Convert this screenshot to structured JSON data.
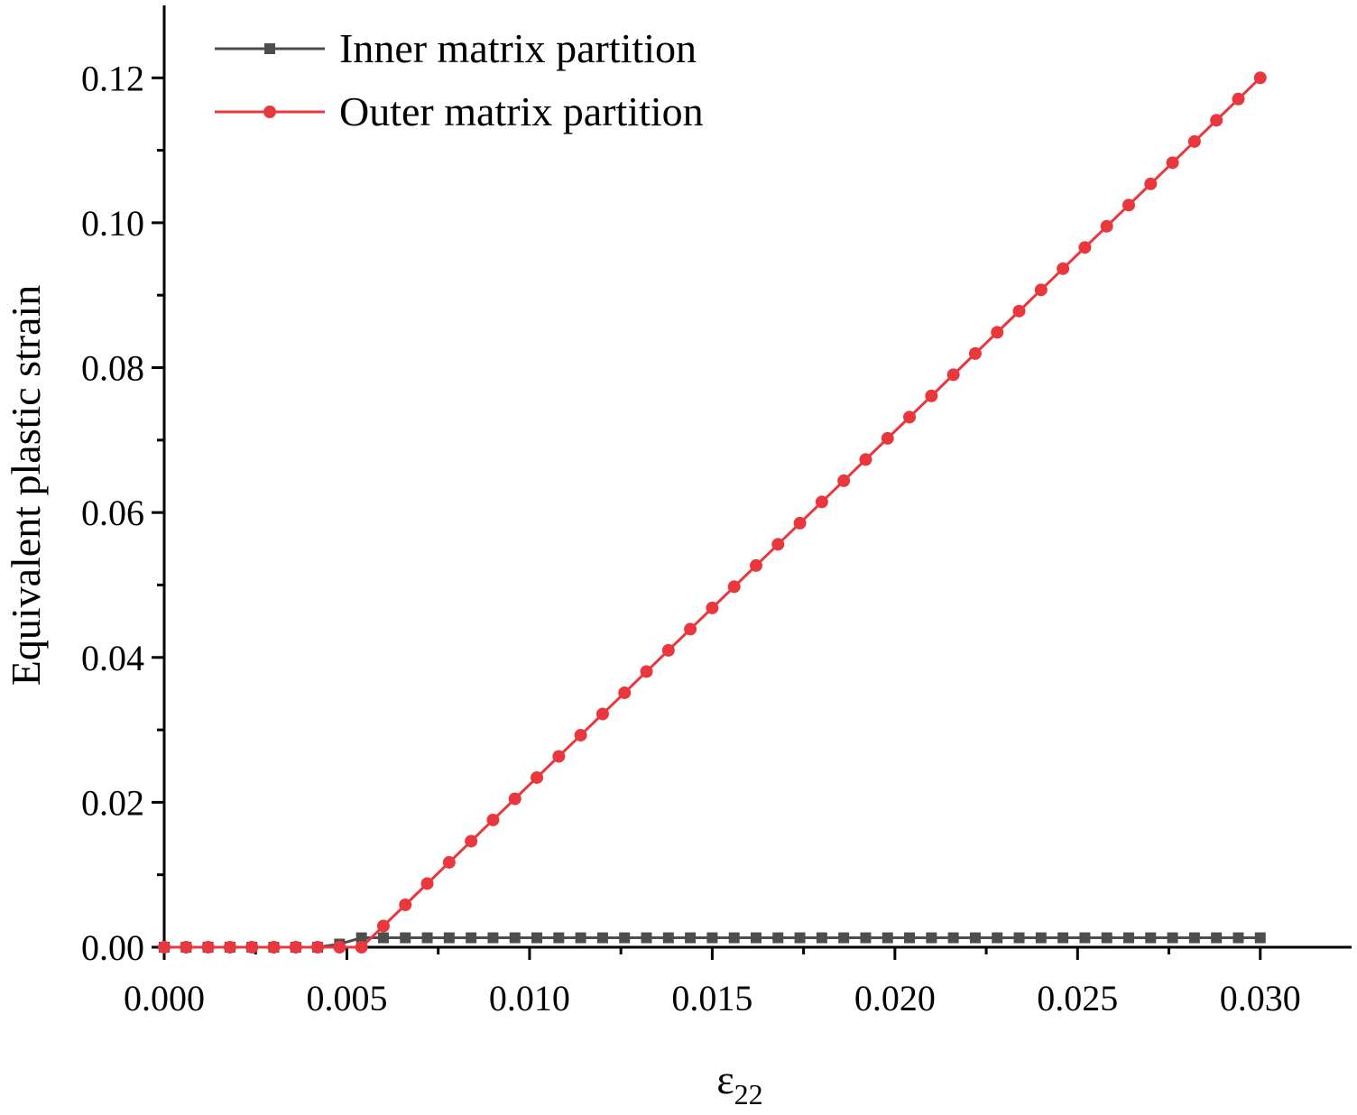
{
  "chart_data": {
    "type": "line",
    "title": "",
    "xlabel": "ε",
    "xlabel_subscript": "22",
    "ylabel": "Equivalent plastic strain",
    "xlim": [
      0.0,
      0.0325
    ],
    "ylim": [
      0.0,
      0.13
    ],
    "x_ticks": [
      0.0,
      0.005,
      0.01,
      0.015,
      0.02,
      0.025,
      0.03
    ],
    "x_tick_labels": [
      "0.000",
      "0.005",
      "0.010",
      "0.015",
      "0.020",
      "0.025",
      "0.030"
    ],
    "y_ticks": [
      0.0,
      0.02,
      0.04,
      0.06,
      0.08,
      0.1,
      0.12
    ],
    "y_tick_labels": [
      "0.00",
      "0.02",
      "0.04",
      "0.06",
      "0.08",
      "0.10",
      "0.12"
    ],
    "grid": false,
    "legend_position": "top-left",
    "series": [
      {
        "name": "Inner matrix partition",
        "color": "#4d4d4d",
        "marker": "square",
        "x_start": 0.0,
        "x_end": 0.03,
        "n_points": 51,
        "yield_onset": 0.0045,
        "yield_complete": 0.0054,
        "plateau_value": 0.0013
      },
      {
        "name": "Outer matrix partition",
        "color": "#e8383d",
        "marker": "circle",
        "x_start": 0.0,
        "x_end": 0.03,
        "n_points": 51,
        "yield_point": 0.0054,
        "final_value": 0.12
      }
    ]
  }
}
